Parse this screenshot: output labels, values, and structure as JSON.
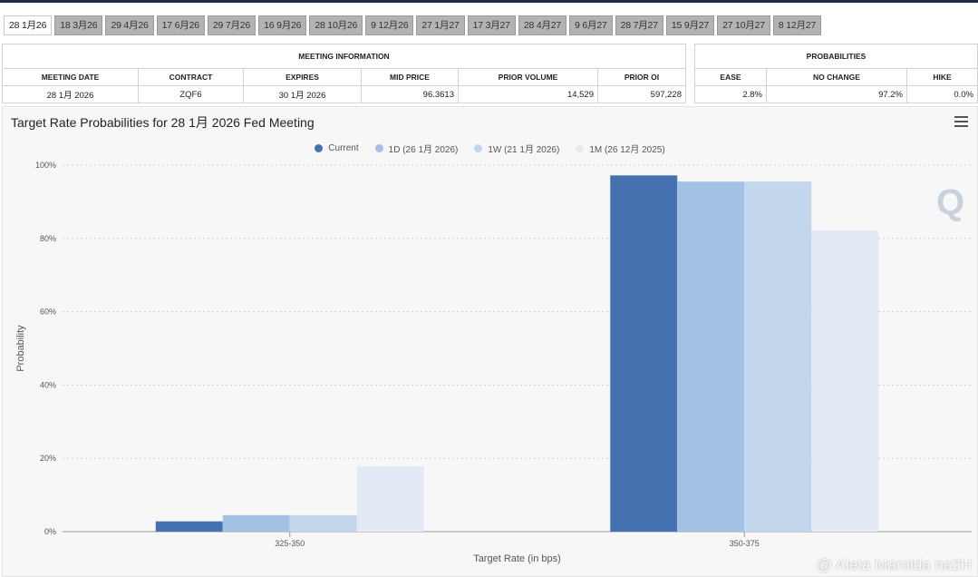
{
  "tabs": [
    "28 1月26",
    "18 3月26",
    "29 4月26",
    "17 6月26",
    "29 7月26",
    "16 9月26",
    "28 10月26",
    "9 12月26",
    "27 1月27",
    "17 3月27",
    "28 4月27",
    "9 6月27",
    "28 7月27",
    "15 9月27",
    "27 10月27",
    "8 12月27"
  ],
  "active_tab": 0,
  "meeting_info": {
    "header": "MEETING INFORMATION",
    "columns": [
      "MEETING DATE",
      "CONTRACT",
      "EXPIRES",
      "MID PRICE",
      "PRIOR VOLUME",
      "PRIOR OI"
    ],
    "row": [
      "28 1月 2026",
      "ZQF6",
      "30 1月 2026",
      "96.3613",
      "14,529",
      "597,228"
    ]
  },
  "probabilities": {
    "header": "PROBABILITIES",
    "columns": [
      "EASE",
      "NO CHANGE",
      "HIKE"
    ],
    "row": [
      "2.8%",
      "97.2%",
      "0.0%"
    ]
  },
  "chart_title": "Target Rate Probabilities for 28 1月 2026 Fed Meeting",
  "watermark": "@ Aleta Marolda na2H",
  "colors": {
    "current": "#4472b0",
    "d1": "#a3c1e4",
    "w1": "#c3d7ec",
    "m1": "#e3eaf5"
  },
  "chart_data": {
    "type": "bar",
    "xlabel": "Target Rate (in bps)",
    "ylabel": "Probability",
    "categories": [
      "325-350",
      "350-375"
    ],
    "yticks": [
      "0%",
      "20%",
      "40%",
      "60%",
      "80%",
      "100%"
    ],
    "ylim": [
      0,
      100
    ],
    "grid": true,
    "legend": "top-center",
    "series": [
      {
        "name": "Current",
        "values": [
          2.8,
          97.2
        ]
      },
      {
        "name": "1D (26 1月 2026)",
        "values": [
          4.5,
          95.5
        ]
      },
      {
        "name": "1W (21 1月 2026)",
        "values": [
          4.5,
          95.5
        ]
      },
      {
        "name": "1M (26 12月 2025)",
        "values": [
          17.8,
          82.2
        ]
      }
    ]
  }
}
